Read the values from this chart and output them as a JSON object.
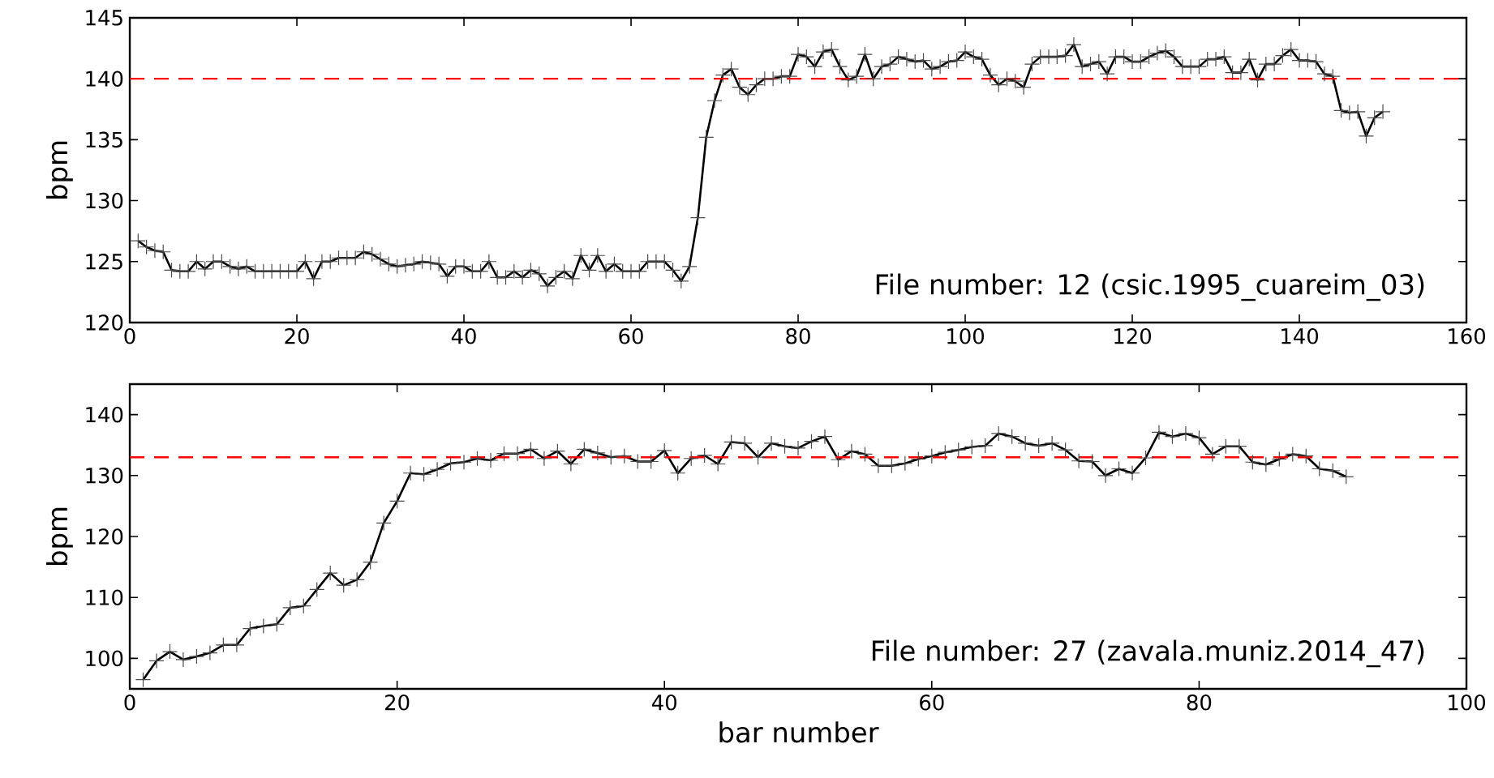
{
  "chart_data": [
    {
      "type": "line",
      "ylabel": "bpm",
      "xlim": [
        0,
        160
      ],
      "ylim": [
        120,
        145
      ],
      "xticks": [
        0,
        20,
        40,
        60,
        80,
        100,
        120,
        140,
        160
      ],
      "yticks": [
        120,
        125,
        130,
        135,
        140,
        145
      ],
      "marker": "cross",
      "line_style": "solid",
      "grid": false,
      "tick_labels": "xy",
      "series": [
        {
          "color": "#000000",
          "x": [
            1,
            2,
            3,
            4,
            5,
            6,
            7,
            8,
            9,
            10,
            11,
            12,
            13,
            14,
            15,
            16,
            17,
            18,
            19,
            20,
            21,
            22,
            23,
            24,
            25,
            26,
            27,
            28,
            29,
            30,
            31,
            32,
            33,
            34,
            35,
            36,
            37,
            38,
            39,
            40,
            41,
            42,
            43,
            44,
            45,
            46,
            47,
            48,
            49,
            50,
            51,
            52,
            53,
            54,
            55,
            56,
            57,
            58,
            59,
            60,
            61,
            62,
            63,
            64,
            65,
            66,
            67,
            68,
            69,
            70,
            71,
            72,
            73,
            74,
            75,
            76,
            77,
            78,
            79,
            80,
            81,
            82,
            83,
            84,
            85,
            86,
            87,
            88,
            89,
            90,
            91,
            92,
            93,
            94,
            95,
            96,
            97,
            98,
            99,
            100,
            101,
            102,
            103,
            104,
            105,
            106,
            107,
            108,
            109,
            110,
            111,
            112,
            113,
            114,
            115,
            116,
            117,
            118,
            119,
            120,
            121,
            122,
            123,
            124,
            125,
            126,
            127,
            128,
            129,
            130,
            131,
            132,
            133,
            134,
            135,
            136,
            137,
            138,
            139,
            140,
            141,
            142,
            143,
            144,
            145,
            146,
            147,
            148,
            149,
            150
          ],
          "values": [
            126.7,
            126.2,
            125.9,
            125.8,
            124.3,
            124.2,
            124.2,
            125.0,
            124.4,
            125.0,
            125.0,
            124.6,
            124.4,
            124.6,
            124.2,
            124.2,
            124.2,
            124.2,
            124.2,
            124.2,
            125.0,
            123.6,
            125.0,
            125.0,
            125.3,
            125.3,
            125.3,
            125.8,
            125.6,
            125.2,
            124.8,
            124.6,
            124.7,
            124.8,
            125.0,
            124.9,
            124.8,
            123.8,
            124.6,
            124.6,
            124.2,
            124.2,
            125.0,
            123.7,
            123.7,
            124.2,
            123.7,
            124.3,
            124.0,
            123.0,
            123.7,
            124.2,
            123.6,
            125.5,
            124.3,
            125.5,
            124.2,
            124.8,
            124.2,
            124.2,
            124.2,
            125.0,
            125.0,
            125.0,
            124.3,
            123.4,
            124.6,
            128.6,
            135.2,
            138.2,
            140.3,
            140.8,
            139.3,
            138.7,
            139.5,
            140.0,
            140.0,
            140.2,
            140.2,
            142.0,
            141.8,
            141.0,
            142.2,
            142.4,
            141.0,
            139.9,
            140.2,
            142.0,
            140.0,
            141.0,
            141.2,
            141.8,
            141.6,
            141.4,
            141.5,
            140.8,
            141.0,
            141.4,
            141.5,
            142.2,
            141.8,
            141.6,
            140.3,
            139.5,
            140.0,
            139.8,
            139.3,
            141.2,
            141.8,
            141.8,
            141.8,
            141.9,
            142.8,
            141.0,
            141.2,
            141.4,
            140.4,
            141.8,
            141.8,
            141.4,
            141.4,
            141.8,
            142.1,
            142.3,
            141.8,
            141.0,
            141.0,
            141.0,
            141.6,
            141.6,
            141.8,
            140.5,
            140.5,
            141.6,
            139.9,
            141.2,
            141.2,
            141.9,
            142.4,
            141.5,
            141.5,
            141.4,
            140.4,
            140.2,
            137.4,
            137.2,
            137.3,
            135.3,
            136.8,
            137.3
          ]
        }
      ],
      "ref_lines": [
        {
          "axis": "y",
          "value": 140,
          "color": "#ff0000",
          "line_style": "dashed"
        }
      ],
      "annotations": [
        "File number: 12 (csic.1995_cuareim_03)"
      ]
    },
    {
      "type": "line",
      "xlabel": "bar number",
      "ylabel": "bpm",
      "xlim": [
        0,
        100
      ],
      "ylim": [
        95,
        145
      ],
      "xticks": [
        0,
        20,
        40,
        60,
        80,
        100
      ],
      "yticks": [
        100,
        110,
        120,
        130,
        140
      ],
      "marker": "cross",
      "line_style": "solid",
      "grid": false,
      "series": [
        {
          "color": "#000000",
          "x": [
            1,
            2,
            3,
            4,
            5,
            6,
            7,
            8,
            9,
            10,
            11,
            12,
            13,
            14,
            15,
            16,
            17,
            18,
            19,
            20,
            21,
            22,
            23,
            24,
            25,
            26,
            27,
            28,
            29,
            30,
            31,
            32,
            33,
            34,
            35,
            36,
            37,
            38,
            39,
            40,
            41,
            42,
            43,
            44,
            45,
            46,
            47,
            48,
            49,
            50,
            51,
            52,
            53,
            54,
            55,
            56,
            57,
            58,
            59,
            60,
            61,
            62,
            63,
            64,
            65,
            66,
            67,
            68,
            69,
            70,
            71,
            72,
            73,
            74,
            75,
            76,
            77,
            78,
            79,
            80,
            81,
            82,
            83,
            84,
            85,
            86,
            87,
            88,
            89,
            90,
            91
          ],
          "values": [
            96.5,
            99.6,
            101.1,
            99.8,
            100.3,
            100.9,
            102.2,
            102.2,
            104.9,
            105.3,
            105.6,
            108.3,
            108.6,
            111.3,
            114.0,
            112.0,
            112.9,
            115.8,
            122.2,
            125.8,
            130.4,
            130.2,
            131.0,
            132.0,
            132.2,
            132.8,
            132.5,
            133.6,
            133.6,
            134.3,
            132.8,
            134.0,
            131.9,
            134.3,
            133.7,
            133.0,
            133.2,
            132.3,
            132.3,
            134.1,
            130.4,
            132.8,
            133.3,
            131.9,
            135.5,
            135.3,
            133.0,
            135.3,
            134.8,
            134.5,
            135.6,
            136.4,
            132.6,
            134.0,
            133.5,
            131.6,
            131.6,
            132.0,
            132.7,
            133.2,
            133.8,
            134.2,
            134.7,
            134.9,
            136.9,
            136.4,
            135.3,
            134.9,
            135.3,
            134.2,
            132.4,
            132.3,
            130.0,
            131.1,
            130.4,
            132.9,
            137.1,
            136.4,
            136.9,
            136.2,
            133.5,
            134.8,
            134.8,
            132.2,
            131.8,
            132.7,
            133.5,
            133.2,
            131.1,
            130.8,
            129.8
          ]
        }
      ],
      "ref_lines": [
        {
          "axis": "y",
          "value": 133,
          "color": "#ff0000",
          "line_style": "dashed"
        }
      ],
      "annotations": [
        "File number: 27 (zavala.muniz.2014_47)"
      ]
    }
  ]
}
